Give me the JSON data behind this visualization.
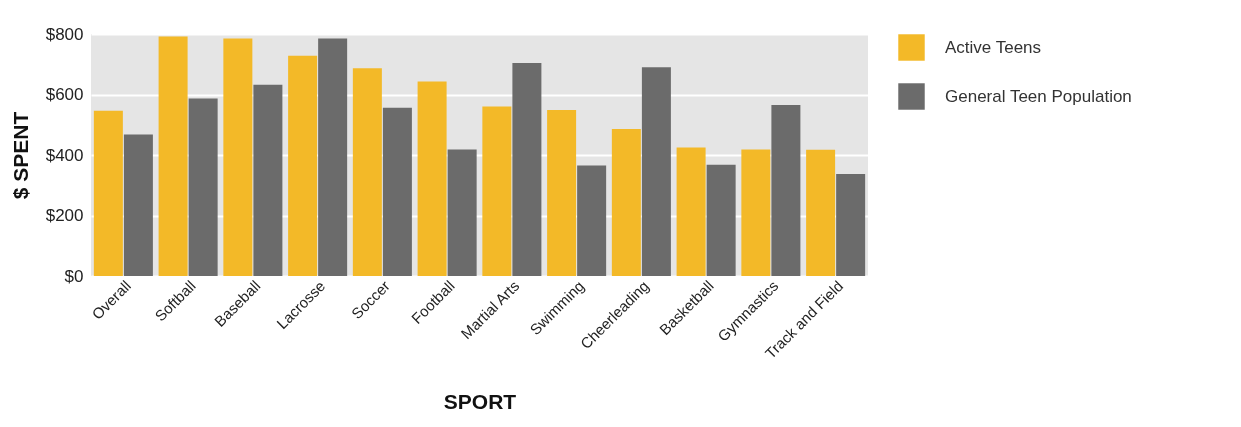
{
  "chart_data": {
    "type": "bar",
    "xlabel": "SPORT",
    "ylabel": "$ SPENT",
    "categories": [
      "Overall",
      "Softball",
      "Baseball",
      "Lacrosse",
      "Soccer",
      "Football",
      "Martial Arts",
      "Swimming",
      "Cheerleading",
      "Basketball",
      "Gymnastics",
      "Track and Field"
    ],
    "series": [
      {
        "name": "Active Teens",
        "color": "#f3b928",
        "values": [
          546,
          792,
          785,
          728,
          687,
          643,
          560,
          549,
          486,
          425,
          418,
          417
        ]
      },
      {
        "name": "General Teen Population",
        "color": "#6b6b6b",
        "values": [
          468,
          587,
          632,
          785,
          556,
          418,
          704,
          365,
          690,
          368,
          565,
          337
        ]
      }
    ],
    "ylim": [
      0,
      800
    ],
    "yticks": [
      {
        "value": 0,
        "label": "$0"
      },
      {
        "value": 200,
        "label": "$200"
      },
      {
        "value": 400,
        "label": "$400"
      },
      {
        "value": 600,
        "label": "$600"
      },
      {
        "value": 800,
        "label": "$800"
      }
    ],
    "grid": "y",
    "legend": "top right"
  }
}
